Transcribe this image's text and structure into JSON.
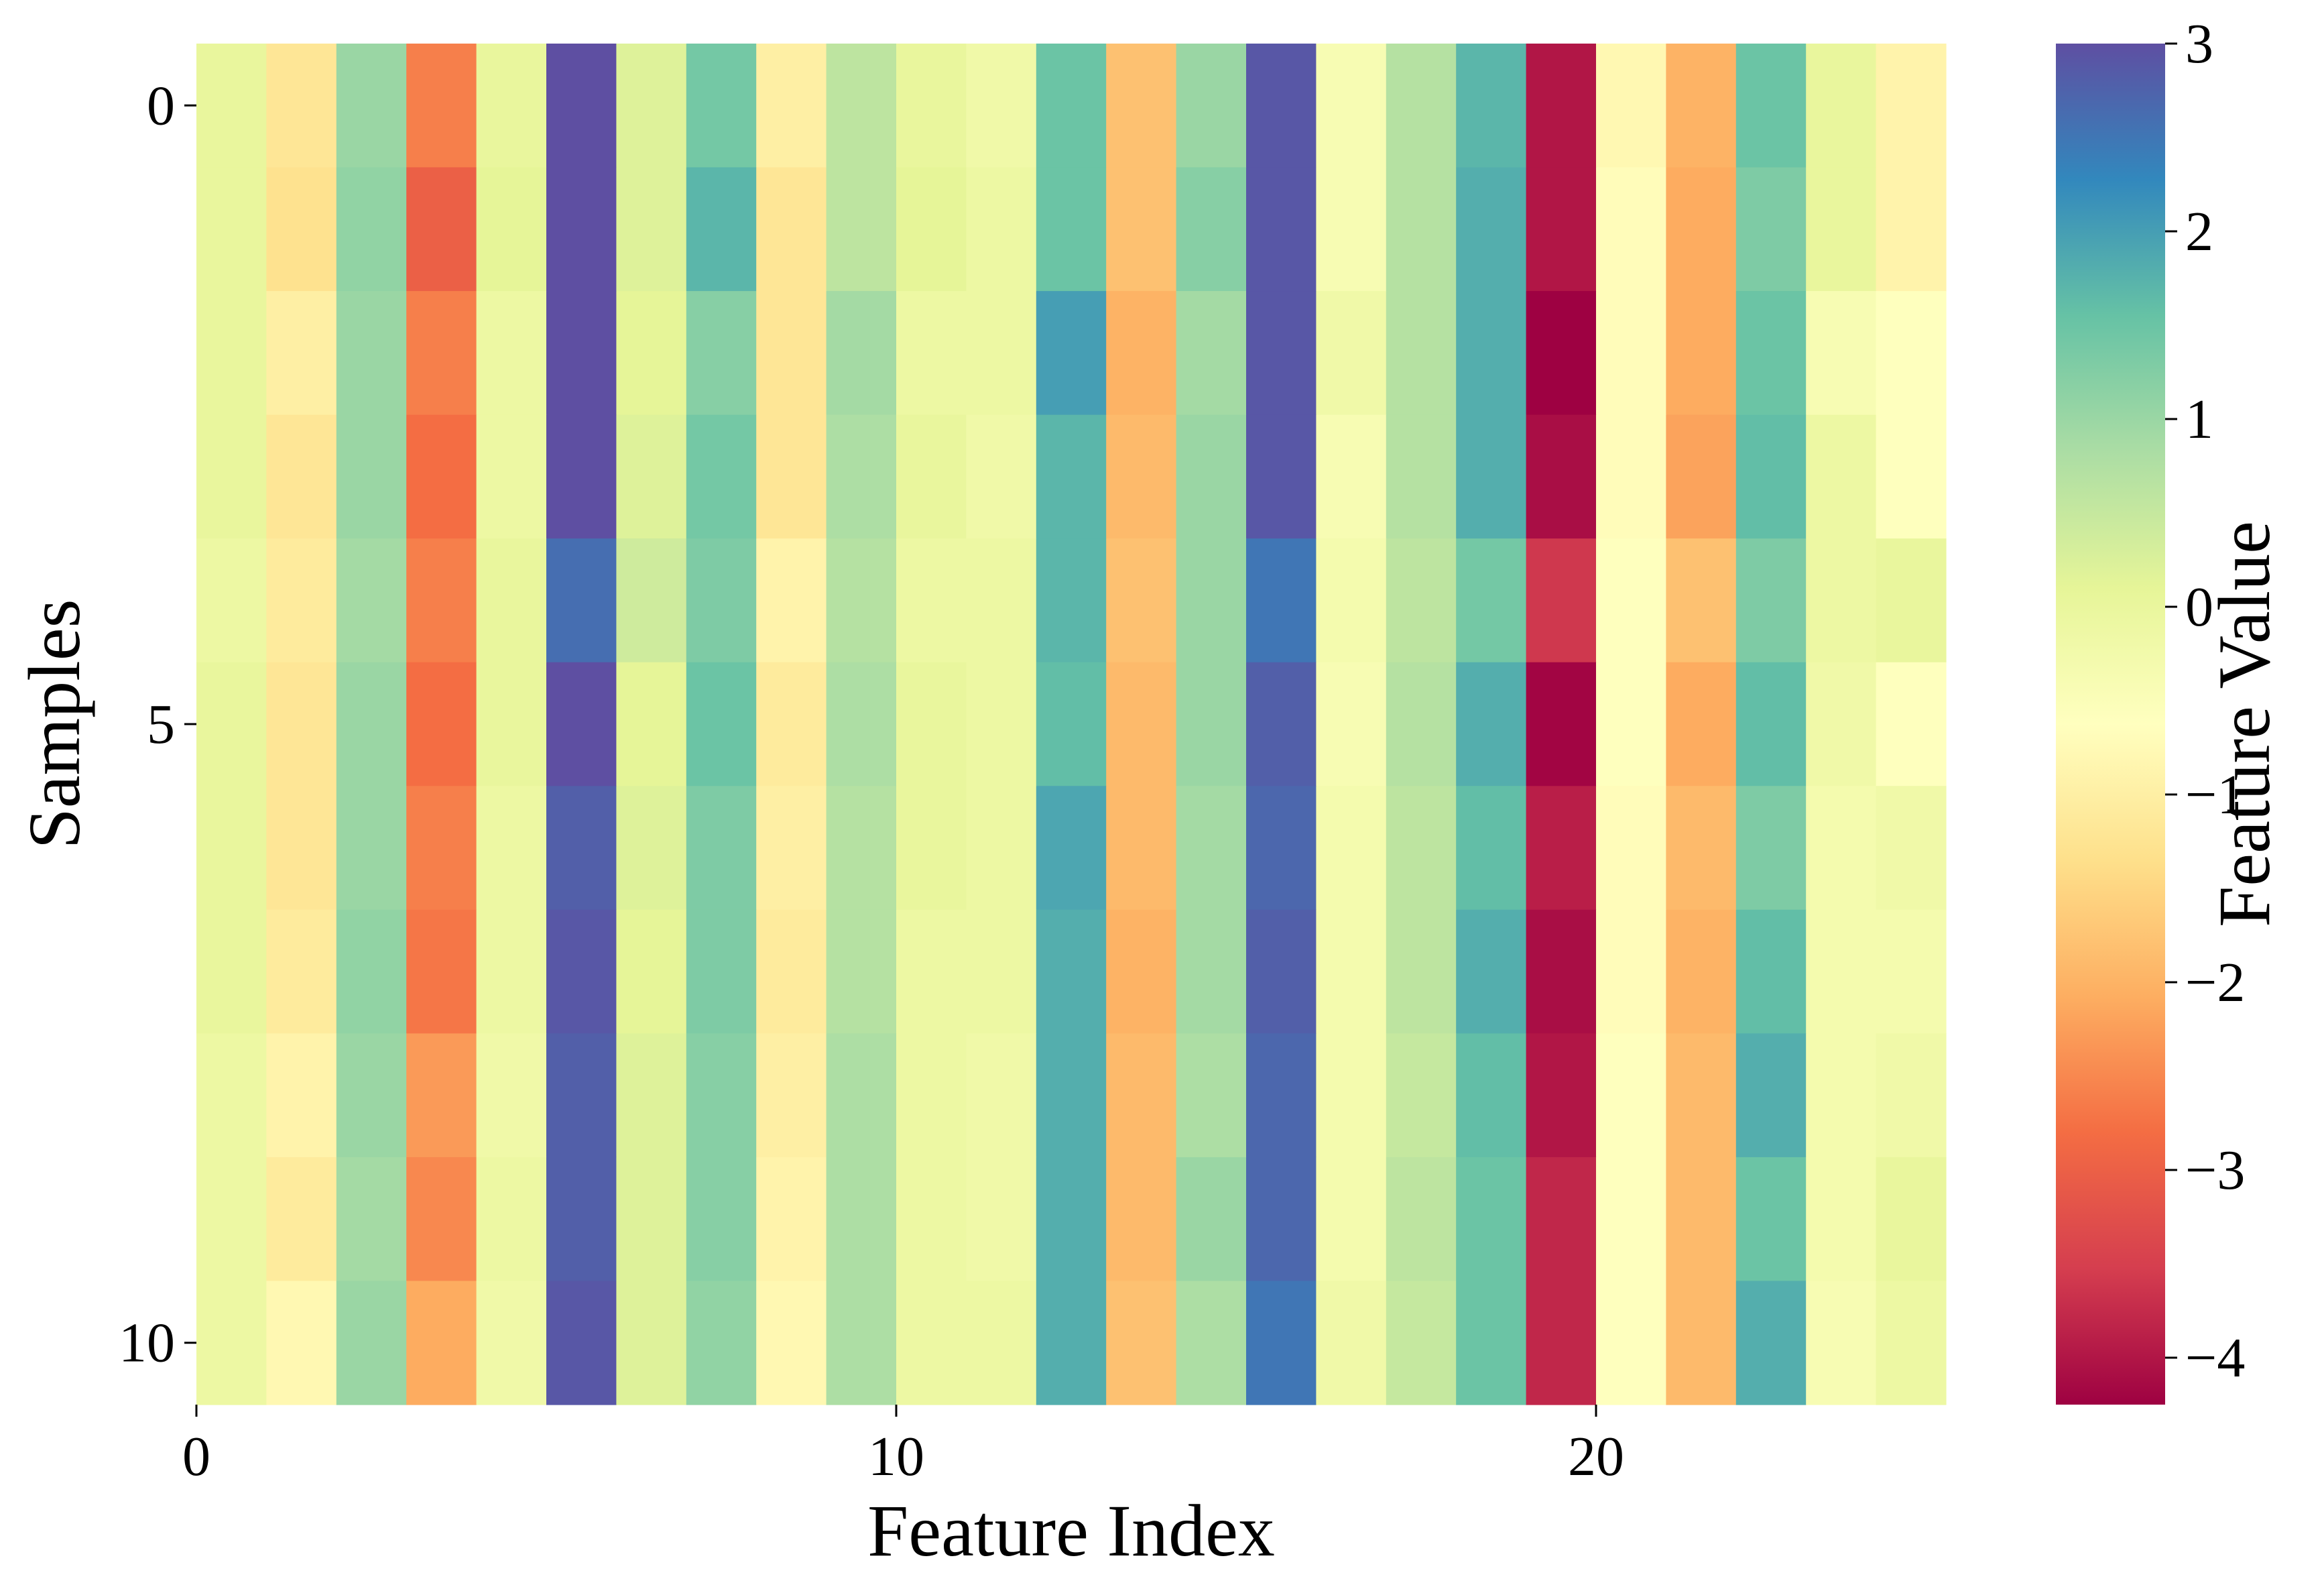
{
  "chart_data": {
    "type": "heatmap",
    "xlabel": "Feature Index",
    "ylabel": "Samples",
    "x_ticks": [
      {
        "value": 0,
        "label": "0"
      },
      {
        "value": 10,
        "label": "10"
      },
      {
        "value": 20,
        "label": "20"
      }
    ],
    "y_ticks": [
      {
        "value": 0,
        "label": "0"
      },
      {
        "value": 5,
        "label": "5"
      },
      {
        "value": 10,
        "label": "10"
      }
    ],
    "n_features": 25,
    "n_samples": 11,
    "colormap": "Spectral",
    "colormap_stops": [
      "#9e0142",
      "#d53e4f",
      "#f46d43",
      "#fdae61",
      "#fee08b",
      "#ffffbf",
      "#e6f598",
      "#abdda4",
      "#66c2a5",
      "#3288bd",
      "#5e4fa2"
    ],
    "colorbar": {
      "label": "Feature Value",
      "vmin": -4.25,
      "vmax": 3.0,
      "ticks": [
        {
          "value": 3,
          "label": "3"
        },
        {
          "value": 2,
          "label": "2"
        },
        {
          "value": 1,
          "label": "1"
        },
        {
          "value": 0,
          "label": "0"
        },
        {
          "value": -1,
          "label": "−1"
        },
        {
          "value": -2,
          "label": "−2"
        },
        {
          "value": -3,
          "label": "−3"
        },
        {
          "value": -4,
          "label": "−4"
        }
      ]
    },
    "values": [
      [
        0.0,
        -1.2,
        1.0,
        -2.6,
        0.0,
        3.0,
        0.2,
        1.4,
        -1.0,
        0.6,
        0.0,
        -0.2,
        1.5,
        -1.8,
        1.0,
        2.9,
        -0.4,
        0.7,
        1.7,
        -4.0,
        -0.8,
        -2.0,
        1.5,
        0.0,
        -0.9
      ],
      [
        0.0,
        -1.3,
        1.1,
        -3.0,
        0.1,
        3.0,
        0.2,
        1.7,
        -1.2,
        0.6,
        0.1,
        -0.1,
        1.5,
        -1.8,
        1.2,
        2.9,
        -0.4,
        0.7,
        1.8,
        -4.0,
        -0.7,
        -2.1,
        1.3,
        0.0,
        -0.9
      ],
      [
        0.0,
        -1.0,
        1.0,
        -2.6,
        -0.1,
        3.0,
        0.1,
        1.2,
        -1.2,
        0.9,
        -0.1,
        -0.1,
        2.0,
        -2.0,
        0.9,
        2.9,
        -0.2,
        0.7,
        1.8,
        -4.25,
        -0.7,
        -2.1,
        1.5,
        -0.4,
        -0.6
      ],
      [
        0.0,
        -1.2,
        1.0,
        -2.8,
        -0.1,
        3.0,
        0.2,
        1.4,
        -1.2,
        0.8,
        0.0,
        -0.2,
        1.7,
        -1.9,
        1.0,
        2.9,
        -0.4,
        0.7,
        1.8,
        -4.1,
        -0.7,
        -2.2,
        1.6,
        -0.1,
        -0.6
      ],
      [
        -0.1,
        -1.1,
        0.9,
        -2.6,
        0.0,
        2.6,
        0.4,
        1.3,
        -0.9,
        0.7,
        -0.1,
        -0.1,
        1.7,
        -1.8,
        1.0,
        2.5,
        -0.3,
        0.6,
        1.4,
        -3.6,
        -0.6,
        -1.8,
        1.3,
        -0.1,
        0.0
      ],
      [
        0.0,
        -1.2,
        1.0,
        -2.8,
        0.0,
        3.0,
        0.1,
        1.5,
        -1.1,
        0.8,
        0.0,
        -0.1,
        1.6,
        -1.9,
        1.0,
        2.8,
        -0.4,
        0.7,
        1.8,
        -4.2,
        -0.6,
        -2.1,
        1.6,
        -0.2,
        -0.6
      ],
      [
        0.0,
        -1.2,
        1.0,
        -2.6,
        -0.1,
        2.8,
        0.2,
        1.3,
        -1.0,
        0.7,
        0.0,
        -0.1,
        1.9,
        -1.9,
        0.9,
        2.7,
        -0.3,
        0.6,
        1.6,
        -3.9,
        -0.7,
        -1.9,
        1.3,
        -0.3,
        -0.2
      ],
      [
        0.0,
        -1.1,
        1.1,
        -2.7,
        -0.1,
        2.9,
        0.1,
        1.3,
        -1.1,
        0.7,
        -0.1,
        -0.1,
        1.8,
        -2.0,
        0.9,
        2.8,
        -0.3,
        0.6,
        1.8,
        -4.1,
        -0.7,
        -2.0,
        1.6,
        -0.3,
        -0.3
      ],
      [
        -0.1,
        -0.9,
        1.0,
        -2.3,
        -0.2,
        2.8,
        0.2,
        1.2,
        -1.0,
        0.8,
        -0.1,
        -0.2,
        1.8,
        -1.9,
        0.8,
        2.7,
        -0.3,
        0.5,
        1.6,
        -4.0,
        -0.6,
        -1.9,
        1.8,
        -0.3,
        -0.2
      ],
      [
        -0.1,
        -1.1,
        0.9,
        -2.5,
        -0.1,
        2.8,
        0.2,
        1.2,
        -0.9,
        0.8,
        -0.1,
        -0.2,
        1.8,
        -1.9,
        1.0,
        2.7,
        -0.3,
        0.6,
        1.5,
        -3.8,
        -0.6,
        -1.9,
        1.5,
        -0.3,
        0.0
      ],
      [
        -0.1,
        -0.8,
        1.0,
        -2.1,
        -0.2,
        2.9,
        0.2,
        1.1,
        -0.8,
        0.8,
        -0.1,
        -0.1,
        1.8,
        -1.8,
        0.8,
        2.5,
        -0.2,
        0.5,
        1.5,
        -3.8,
        -0.6,
        -1.9,
        1.8,
        -0.4,
        -0.1
      ]
    ]
  }
}
